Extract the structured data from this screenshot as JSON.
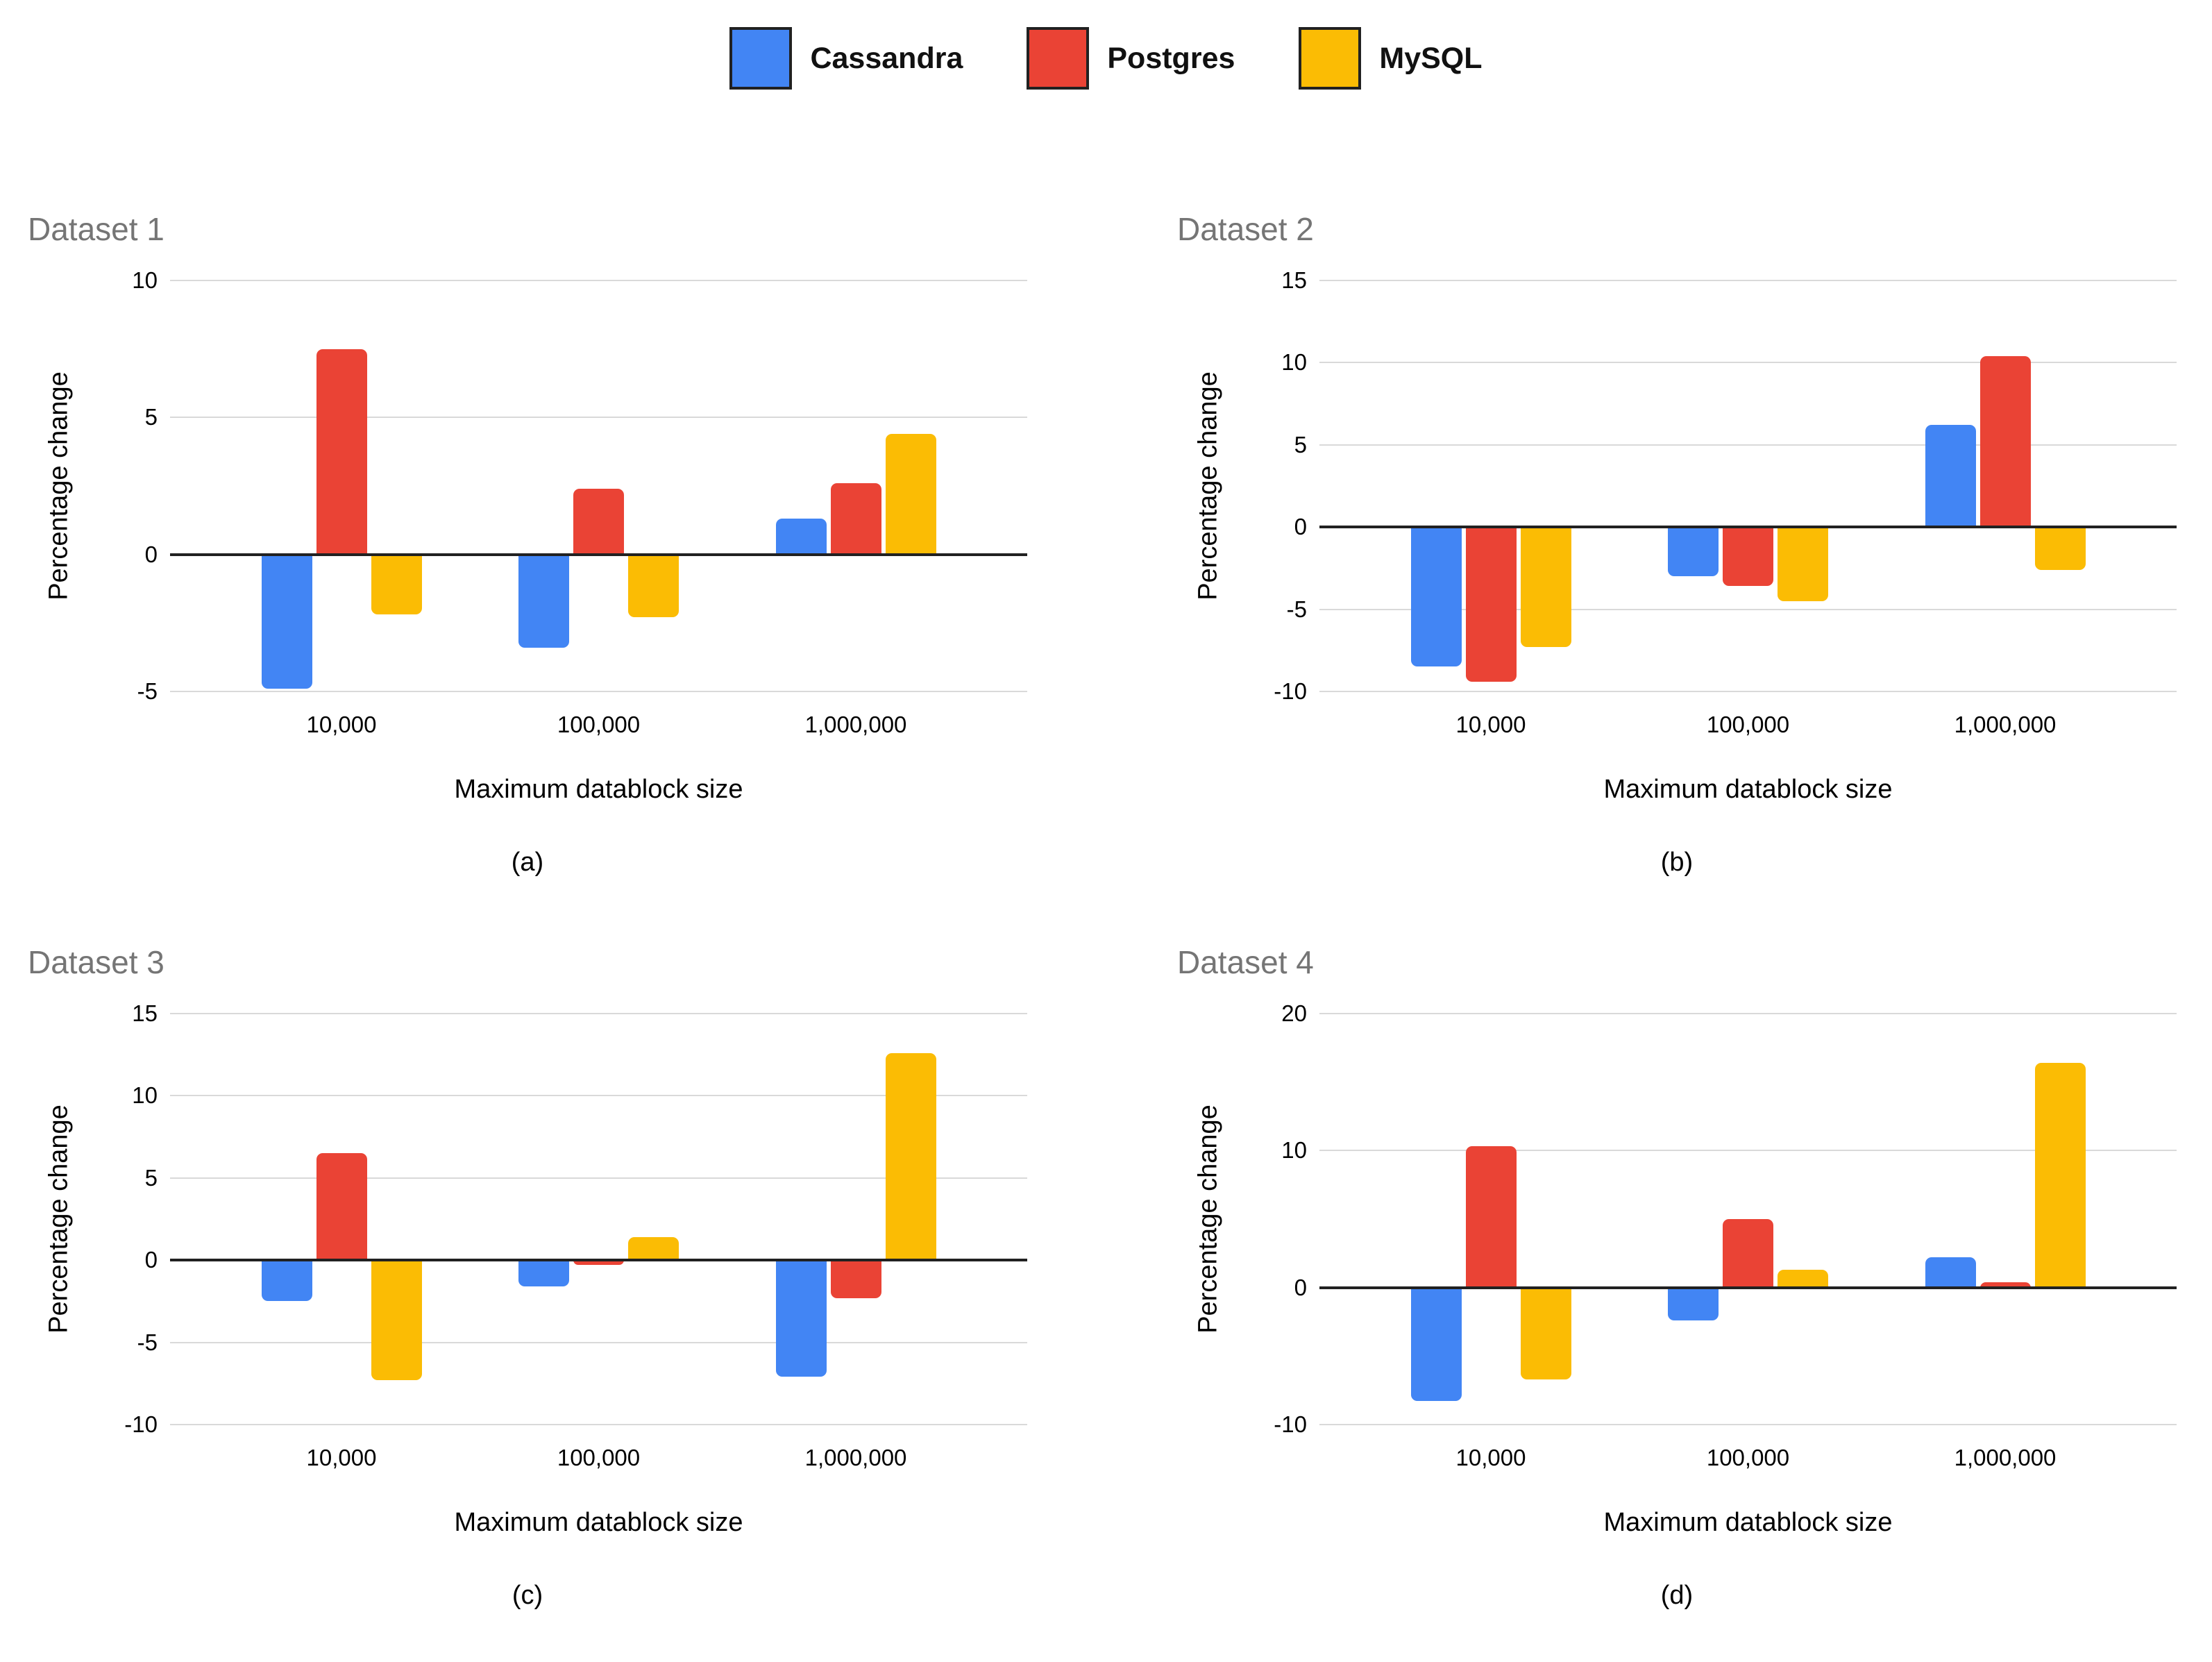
{
  "legend": {
    "position": "top",
    "items": [
      {
        "label": "Cassandra",
        "color": "#4285F4"
      },
      {
        "label": "Postgres",
        "color": "#EA4335"
      },
      {
        "label": "MySQL",
        "color": "#FBBC04"
      }
    ]
  },
  "colors": {
    "cassandra": "#4285F4",
    "postgres": "#EA4335",
    "mysql": "#FBBC04",
    "chart_title": "#757575",
    "gridline": "#D9D9D9",
    "zero_line": "#212121",
    "axis_text": "#000000",
    "background": "#FFFFFF"
  },
  "chart_data": [
    {
      "type": "bar",
      "title": "Dataset 1",
      "caption": "(a)",
      "xlabel": "Maximum datablock size",
      "ylabel": "Percentage change",
      "categories": [
        "10,000",
        "100,000",
        "1,000,000"
      ],
      "yticks": [
        10,
        5,
        0,
        -5
      ],
      "ytick_labels": [
        "10",
        "5",
        "0",
        "-5"
      ],
      "ylim": [
        -5,
        10
      ],
      "grid": true,
      "legend_position": "top",
      "series": [
        {
          "name": "Cassandra",
          "values": [
            -4.9,
            -3.4,
            1.3
          ]
        },
        {
          "name": "Postgres",
          "values": [
            7.5,
            2.4,
            2.6
          ]
        },
        {
          "name": "MySQL",
          "values": [
            -2.2,
            -2.3,
            4.4
          ]
        }
      ]
    },
    {
      "type": "bar",
      "title": "Dataset 2",
      "caption": "(b)",
      "xlabel": "Maximum datablock size",
      "ylabel": "Percentage change",
      "categories": [
        "10,000",
        "100,000",
        "1,000,000"
      ],
      "yticks": [
        15,
        10,
        5,
        0,
        -5,
        -10
      ],
      "ytick_labels": [
        "15",
        "10",
        "5",
        "0",
        "-5",
        "-10"
      ],
      "ylim": [
        -10,
        15
      ],
      "grid": true,
      "legend_position": "top",
      "series": [
        {
          "name": "Cassandra",
          "values": [
            -8.5,
            -3.0,
            6.2
          ]
        },
        {
          "name": "Postgres",
          "values": [
            -9.4,
            -3.6,
            10.4
          ]
        },
        {
          "name": "MySQL",
          "values": [
            -7.3,
            -4.5,
            -2.6
          ]
        }
      ]
    },
    {
      "type": "bar",
      "title": "Dataset 3",
      "caption": "(c)",
      "xlabel": "Maximum datablock size",
      "ylabel": "Percentage change",
      "categories": [
        "10,000",
        "100,000",
        "1,000,000"
      ],
      "yticks": [
        15,
        10,
        5,
        0,
        -5,
        -10
      ],
      "ytick_labels": [
        "15",
        "10",
        "5",
        "0",
        "-5",
        "-10"
      ],
      "ylim": [
        -10,
        15
      ],
      "grid": true,
      "legend_position": "top",
      "series": [
        {
          "name": "Cassandra",
          "values": [
            -2.5,
            -1.6,
            -7.1
          ]
        },
        {
          "name": "Postgres",
          "values": [
            6.5,
            -0.3,
            -2.3
          ]
        },
        {
          "name": "MySQL",
          "values": [
            -7.3,
            1.4,
            12.6
          ]
        }
      ]
    },
    {
      "type": "bar",
      "title": "Dataset 4",
      "caption": "(d)",
      "xlabel": "Maximum datablock size",
      "ylabel": "Percentage change",
      "categories": [
        "10,000",
        "100,000",
        "1,000,000"
      ],
      "yticks": [
        20,
        10,
        0,
        -10
      ],
      "ytick_labels": [
        "20",
        "10",
        "0",
        "-10"
      ],
      "ylim": [
        -10,
        20
      ],
      "grid": true,
      "legend_position": "top",
      "series": [
        {
          "name": "Cassandra",
          "values": [
            -8.3,
            -2.4,
            2.2
          ]
        },
        {
          "name": "Postgres",
          "values": [
            10.3,
            5.0,
            0.4
          ]
        },
        {
          "name": "MySQL",
          "values": [
            -6.7,
            1.3,
            16.4
          ]
        }
      ]
    }
  ]
}
